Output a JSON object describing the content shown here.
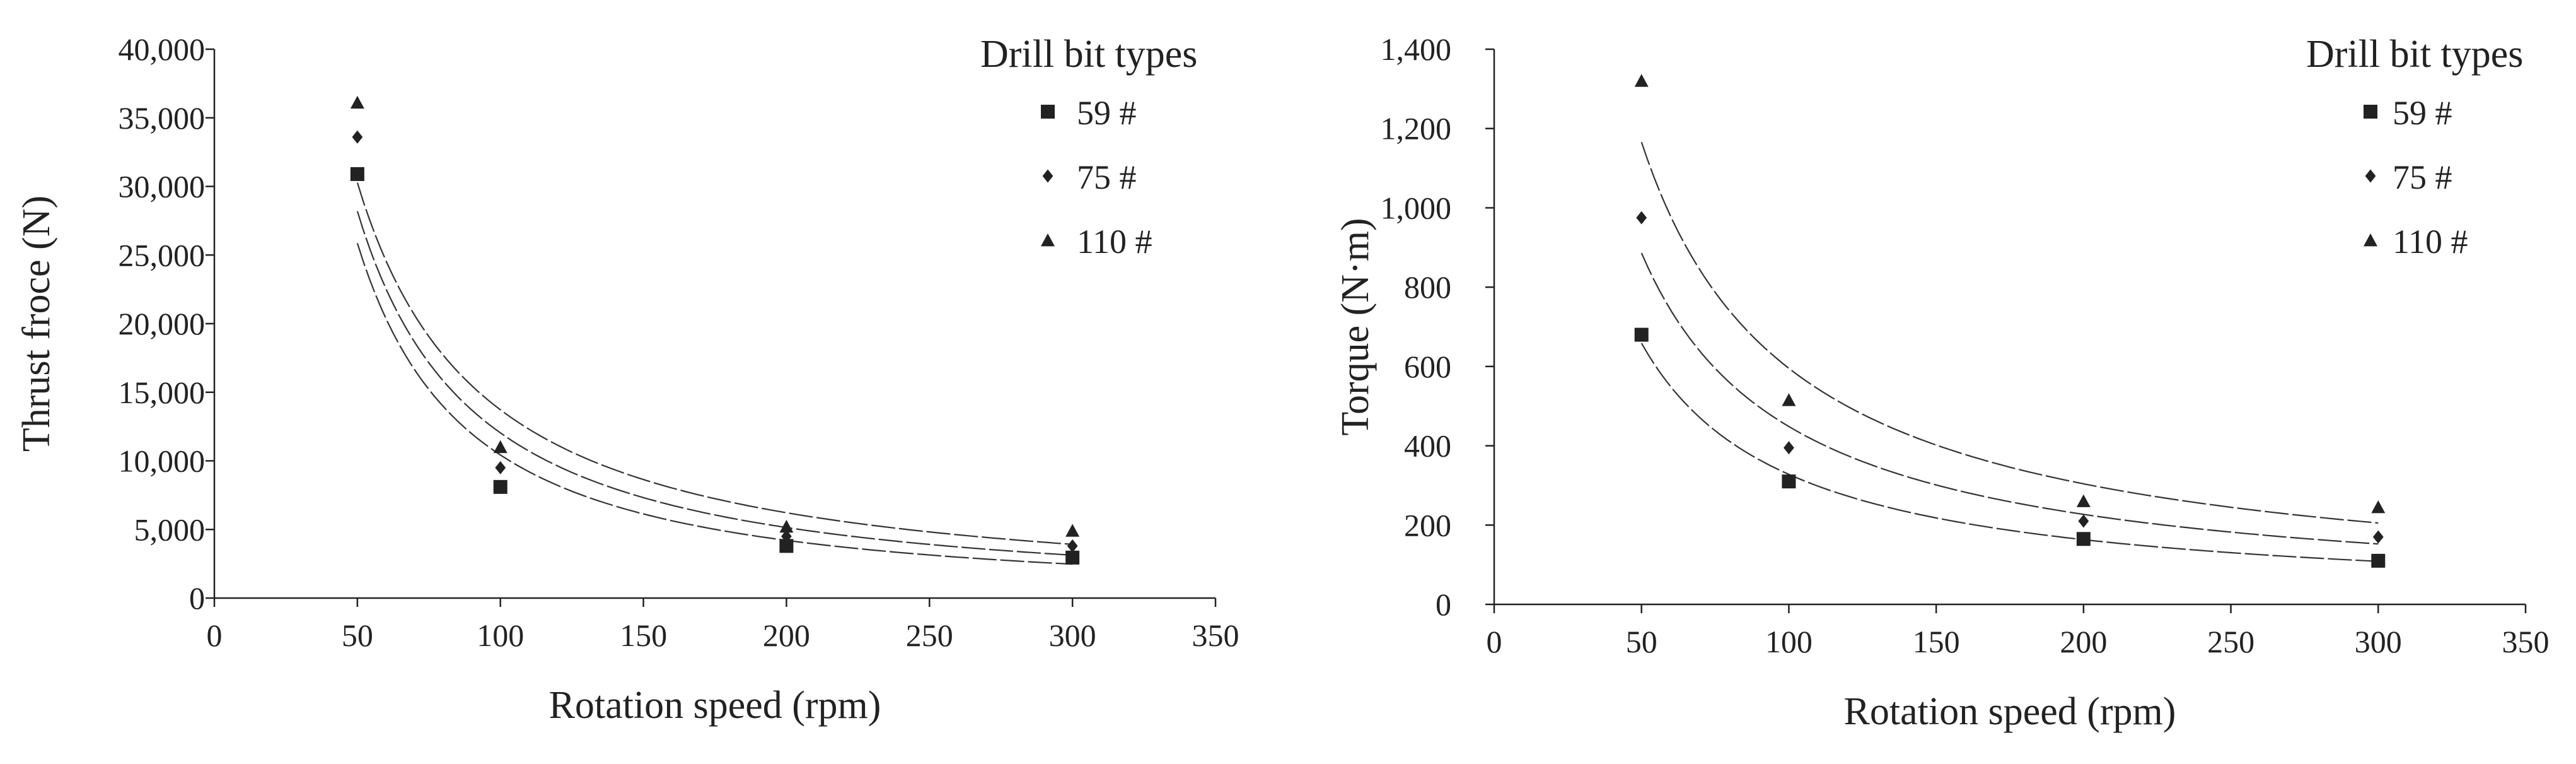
{
  "chart_data": [
    {
      "type": "scatter",
      "xlabel": "Rotation speed (rpm)",
      "ylabel": "Thrust froce (N)",
      "xlim": [
        0,
        350
      ],
      "ylim": [
        0,
        40000
      ],
      "xticks": [
        "0",
        "50",
        "100",
        "150",
        "200",
        "250",
        "300",
        "350"
      ],
      "yticks": [
        "0",
        "5,000",
        "10,000",
        "15,000",
        "20,000",
        "25,000",
        "30,000",
        "35,000",
        "40,000"
      ],
      "legend_title": "Drill bit types",
      "legend_position": "top-right",
      "trendline": "power, dashed",
      "series": [
        {
          "name": "59 #",
          "marker": "square",
          "x": [
            50,
            100,
            200,
            300
          ],
          "values": [
            30900,
            8100,
            3800,
            2950
          ]
        },
        {
          "name": "75 #",
          "marker": "diamond",
          "x": [
            50,
            100,
            200,
            300
          ],
          "values": [
            33600,
            9500,
            4500,
            3800
          ]
        },
        {
          "name": "110 #",
          "marker": "triangle",
          "x": [
            50,
            100,
            200,
            300
          ],
          "values": [
            36100,
            11000,
            5200,
            4900
          ]
        }
      ]
    },
    {
      "type": "scatter",
      "xlabel": "Rotation speed (rpm)",
      "ylabel": "Torque (N·m)",
      "xlim": [
        0,
        350
      ],
      "ylim": [
        0,
        1400
      ],
      "xticks": [
        "0",
        "50",
        "100",
        "150",
        "200",
        "250",
        "300",
        "350"
      ],
      "yticks": [
        "0",
        "200",
        "400",
        "600",
        "800",
        "1,000",
        "1,200",
        "1,400"
      ],
      "legend_title": "Drill bit types",
      "legend_position": "top-right",
      "trendline": "power, dashed",
      "series": [
        {
          "name": "59 #",
          "marker": "square",
          "x": [
            50,
            100,
            200,
            300
          ],
          "values": [
            680,
            310,
            165,
            110
          ]
        },
        {
          "name": "75 #",
          "marker": "diamond",
          "x": [
            50,
            100,
            200,
            300
          ],
          "values": [
            975,
            395,
            210,
            170
          ]
        },
        {
          "name": "110 #",
          "marker": "triangle",
          "x": [
            50,
            100,
            200,
            300
          ],
          "values": [
            1320,
            515,
            260,
            245
          ]
        }
      ]
    }
  ]
}
